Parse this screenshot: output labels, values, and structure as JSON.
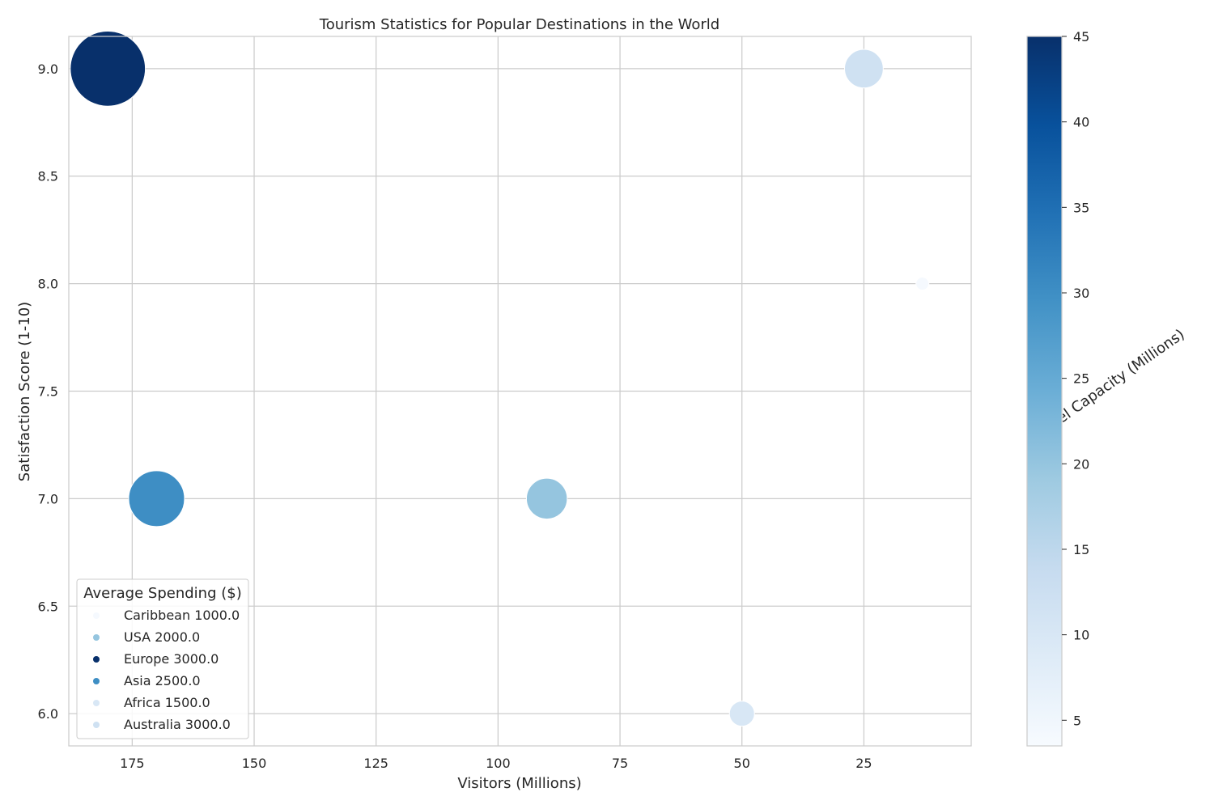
{
  "chart_data": {
    "type": "scatter",
    "title": "Tourism Statistics for Popular Destinations in the World",
    "xlabel": "Visitors (Millions)",
    "ylabel": "Satisfaction Score (1-10)",
    "x_inverted": true,
    "xlim": [
      188,
      3
    ],
    "ylim": [
      5.85,
      9.15
    ],
    "xticks": [
      175,
      150,
      125,
      100,
      75,
      50,
      25
    ],
    "yticks": [
      6.0,
      6.5,
      7.0,
      7.5,
      8.0,
      8.5,
      9.0
    ],
    "ytick_labels": [
      "6.0",
      "6.5",
      "7.0",
      "7.5",
      "8.0",
      "8.5",
      "9.0"
    ],
    "grid": true,
    "colormap": "Blues",
    "colorbar": {
      "label": "Hotel Capacity (Millions)",
      "min": 3.5,
      "max": 45,
      "ticks": [
        5,
        10,
        15,
        20,
        25,
        30,
        35,
        40,
        45
      ]
    },
    "legend": {
      "title": "Average Spending ($)",
      "position": "lower-left"
    },
    "points": [
      {
        "label": "Caribbean 1000.0",
        "visitors": 13,
        "satisfaction": 8,
        "hotel_capacity": 4,
        "spending": 1000
      },
      {
        "label": "USA 2000.0",
        "visitors": 90,
        "satisfaction": 7,
        "hotel_capacity": 20,
        "spending": 2000
      },
      {
        "label": "Europe 3000.0",
        "visitors": 180,
        "satisfaction": 9,
        "hotel_capacity": 45,
        "spending": 3000
      },
      {
        "label": "Asia 2500.0",
        "visitors": 170,
        "satisfaction": 7,
        "hotel_capacity": 30,
        "spending": 2500
      },
      {
        "label": "Africa 1500.0",
        "visitors": 50,
        "satisfaction": 6,
        "hotel_capacity": 10,
        "spending": 1500
      },
      {
        "label": "Australia 3000.0",
        "visitors": 25,
        "satisfaction": 9,
        "hotel_capacity": 12,
        "spending": 3000
      }
    ]
  }
}
